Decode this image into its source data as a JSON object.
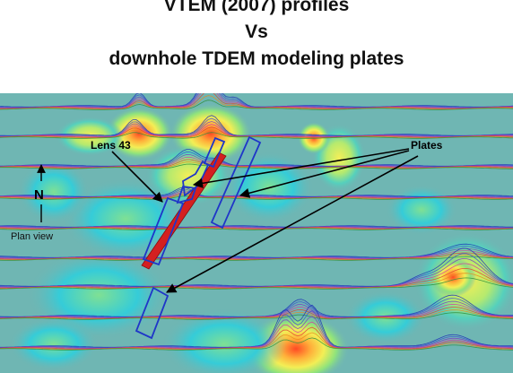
{
  "title": {
    "line1": "VTEM (2007) profiles",
    "line2": "Vs",
    "line3": "downhole TDEM modeling plates"
  },
  "labels": {
    "lens": "Lens 43",
    "plates": "Plates",
    "north": "N",
    "plan_view": "Plan view"
  },
  "colors": {
    "background": "#6fb6b3",
    "plate_outline": "#1f36c8",
    "lens": "#d42020",
    "arrow": "#000000",
    "grid_low": "#2ecad8",
    "grid_mid": "#8fe37c",
    "grid_high": "#f2ea4a",
    "grid_peak": "#ff5a2a"
  }
}
